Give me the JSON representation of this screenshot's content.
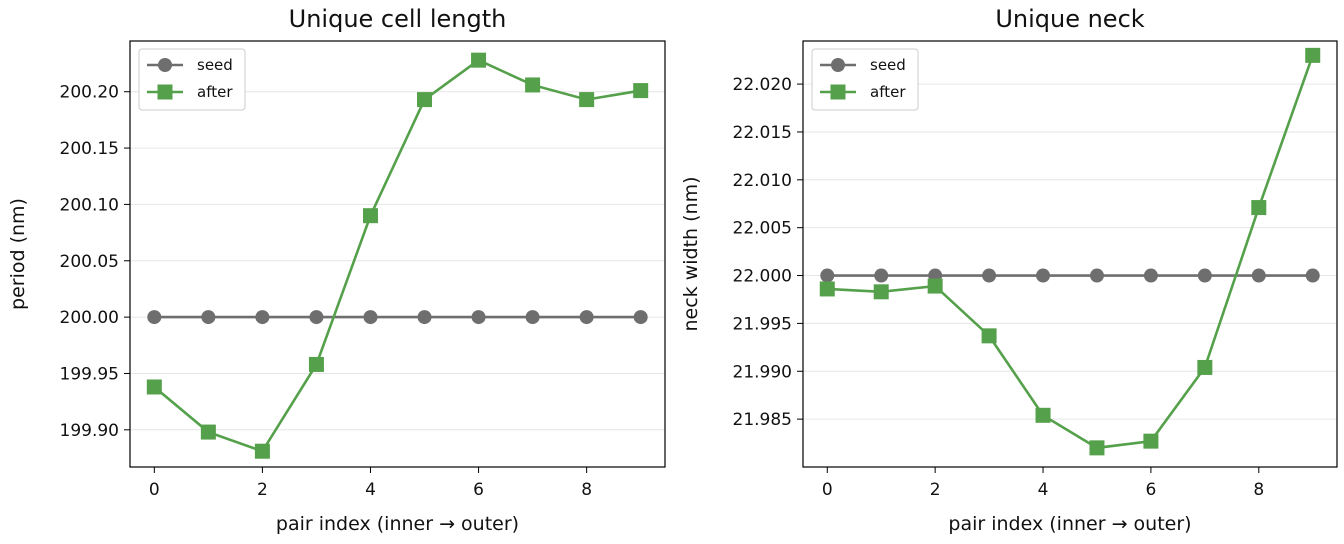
{
  "chart_data": [
    {
      "type": "line",
      "title": "Unique cell length",
      "xlabel": "pair index (inner → outer)",
      "ylabel": "period (nm)",
      "xlim": [
        -0.45,
        9.45
      ],
      "ylim": [
        199.867,
        200.245
      ],
      "xticks": [
        0,
        2,
        4,
        6,
        8
      ],
      "yticks": [
        199.9,
        199.95,
        200.0,
        200.05,
        200.1,
        200.15,
        200.2
      ],
      "ytick_labels": [
        "199.90",
        "199.95",
        "200.00",
        "200.05",
        "200.10",
        "200.15",
        "200.20"
      ],
      "grid": "horizontal",
      "legend": "top-left",
      "x": [
        0,
        1,
        2,
        3,
        4,
        5,
        6,
        7,
        8,
        9
      ],
      "series": [
        {
          "name": "seed",
          "color": "#6e6e6e",
          "marker": "circle",
          "values": [
            200.0,
            200.0,
            200.0,
            200.0,
            200.0,
            200.0,
            200.0,
            200.0,
            200.0,
            200.0
          ]
        },
        {
          "name": "after",
          "color": "#55a04a",
          "marker": "square",
          "values": [
            199.938,
            199.898,
            199.881,
            199.958,
            200.09,
            200.193,
            200.228,
            200.206,
            200.193,
            200.201
          ]
        }
      ]
    },
    {
      "type": "line",
      "title": "Unique neck",
      "xlabel": "pair index (inner → outer)",
      "ylabel": "neck width (nm)",
      "xlim": [
        -0.45,
        9.45
      ],
      "ylim": [
        21.98,
        22.0245
      ],
      "xticks": [
        0,
        2,
        4,
        6,
        8
      ],
      "yticks": [
        21.985,
        21.99,
        21.995,
        22.0,
        22.005,
        22.01,
        22.015,
        22.02
      ],
      "ytick_labels": [
        "21.985",
        "21.990",
        "21.995",
        "22.000",
        "22.005",
        "22.010",
        "22.015",
        "22.020"
      ],
      "grid": "horizontal",
      "legend": "top-left",
      "x": [
        0,
        1,
        2,
        3,
        4,
        5,
        6,
        7,
        8,
        9
      ],
      "series": [
        {
          "name": "seed",
          "color": "#6e6e6e",
          "marker": "circle",
          "values": [
            22.0,
            22.0,
            22.0,
            22.0,
            22.0,
            22.0,
            22.0,
            22.0,
            22.0,
            22.0
          ]
        },
        {
          "name": "after",
          "color": "#55a04a",
          "marker": "square",
          "values": [
            21.9986,
            21.9983,
            21.9989,
            21.9937,
            21.9854,
            21.982,
            21.9827,
            21.9904,
            22.0071,
            22.023
          ]
        }
      ]
    }
  ]
}
